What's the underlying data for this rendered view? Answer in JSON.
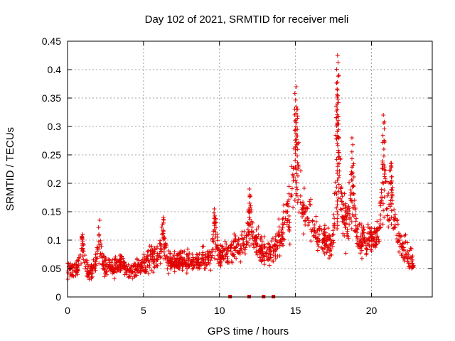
{
  "chart_data": {
    "type": "scatter",
    "title": "Day 102 of 2021, SRMTID for receiver meli",
    "xlabel": "GPS time / hours",
    "ylabel": "SRMTID / TECUs",
    "xlim": [
      0,
      24
    ],
    "ylim": [
      0,
      0.45
    ],
    "x_ticks": [
      0,
      5,
      10,
      15,
      20
    ],
    "x_tick_labels": [
      "0",
      "5",
      "10",
      "15",
      "20"
    ],
    "y_ticks": [
      0,
      0.05,
      0.1,
      0.15,
      0.2,
      0.25,
      0.3,
      0.35,
      0.4,
      0.45
    ],
    "y_tick_labels": [
      "0",
      "0.05",
      "0.1",
      "0.15",
      "0.2",
      "0.25",
      "0.3",
      "0.35",
      "0.4",
      "0.45"
    ],
    "grid": true,
    "marker": "plus",
    "color": "#e00000",
    "series": [
      {
        "name": "SRMTID",
        "envelope_x": [
          0,
          0.5,
          1,
          1.5,
          2,
          2.5,
          3,
          3.5,
          4,
          4.5,
          5,
          5.5,
          6,
          6.5,
          7,
          7.5,
          8,
          8.5,
          9,
          9.5,
          10,
          10.5,
          11,
          11.5,
          12,
          12.5,
          13,
          13.5,
          14,
          14.5,
          15,
          15.5,
          16,
          16.5,
          17,
          17.5,
          18,
          18.5,
          19,
          19.5,
          20,
          20.5,
          21,
          21.5,
          22,
          22.5,
          22.8
        ],
        "envelope_center": [
          0.05,
          0.045,
          0.06,
          0.04,
          0.06,
          0.055,
          0.05,
          0.06,
          0.045,
          0.05,
          0.055,
          0.07,
          0.07,
          0.065,
          0.06,
          0.065,
          0.06,
          0.06,
          0.065,
          0.07,
          0.065,
          0.075,
          0.085,
          0.09,
          0.09,
          0.095,
          0.075,
          0.08,
          0.11,
          0.15,
          0.17,
          0.15,
          0.13,
          0.11,
          0.1,
          0.09,
          0.15,
          0.13,
          0.11,
          0.1,
          0.1,
          0.11,
          0.14,
          0.12,
          0.09,
          0.07,
          0.06
        ],
        "envelope_spread": [
          0.025,
          0.02,
          0.025,
          0.02,
          0.03,
          0.025,
          0.025,
          0.025,
          0.02,
          0.02,
          0.025,
          0.03,
          0.035,
          0.03,
          0.025,
          0.025,
          0.025,
          0.025,
          0.03,
          0.035,
          0.03,
          0.035,
          0.035,
          0.04,
          0.04,
          0.045,
          0.035,
          0.04,
          0.05,
          0.07,
          0.09,
          0.06,
          0.05,
          0.04,
          0.035,
          0.035,
          0.08,
          0.06,
          0.05,
          0.04,
          0.035,
          0.04,
          0.07,
          0.05,
          0.035,
          0.03,
          0.025
        ],
        "peaks": [
          {
            "x": 0.95,
            "y": 0.11
          },
          {
            "x": 2.1,
            "y": 0.135
          },
          {
            "x": 6.3,
            "y": 0.14
          },
          {
            "x": 9.7,
            "y": 0.155
          },
          {
            "x": 12.0,
            "y": 0.19
          },
          {
            "x": 15.0,
            "y": 0.37
          },
          {
            "x": 15.1,
            "y": 0.33
          },
          {
            "x": 17.75,
            "y": 0.425
          },
          {
            "x": 17.8,
            "y": 0.39
          },
          {
            "x": 18.75,
            "y": 0.28
          },
          {
            "x": 20.8,
            "y": 0.32
          },
          {
            "x": 21.3,
            "y": 0.235
          }
        ]
      },
      {
        "name": "zero-level markers",
        "x": [
          10.7,
          11.95,
          12.9,
          13.55
        ],
        "y": [
          0,
          0,
          0,
          0
        ]
      }
    ]
  }
}
